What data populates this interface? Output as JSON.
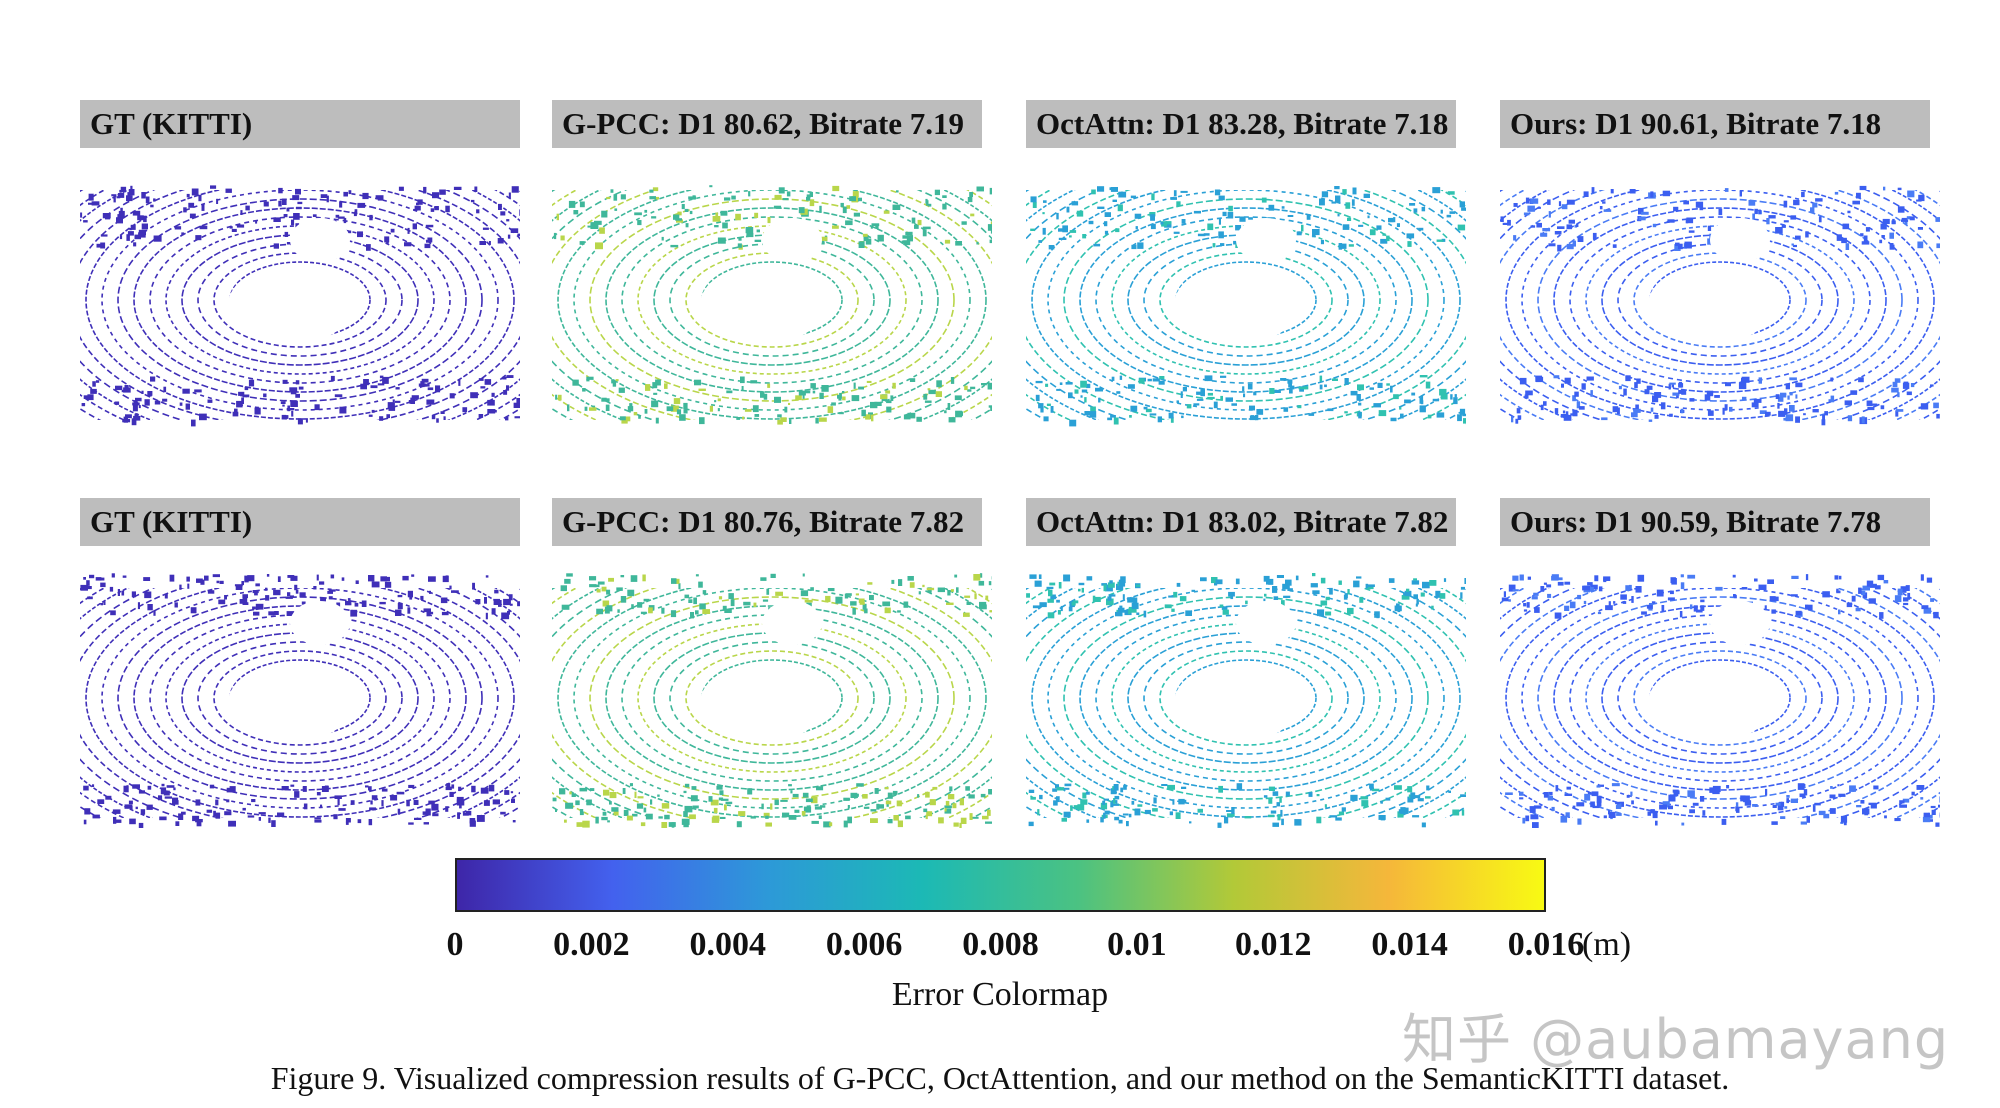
{
  "rows": [
    {
      "panels": [
        {
          "label": "GT (KITTI)",
          "color": "#3f2fb8"
        },
        {
          "label": "G-PCC: D1 80.62, Bitrate 7.19",
          "color": "#3fb79a",
          "accent": "#b9d64a"
        },
        {
          "label": "OctAttn: D1 83.28, Bitrate 7.18",
          "color": "#2aa0d6",
          "accent": "#30c2b0"
        },
        {
          "label": "Ours: D1 90.61, Bitrate 7.18",
          "color": "#3b5ef0",
          "accent": "#4a7cf5"
        }
      ]
    },
    {
      "panels": [
        {
          "label": "GT (KITTI)",
          "color": "#3f2fb8"
        },
        {
          "label": "G-PCC: D1 80.76, Bitrate 7.82",
          "color": "#3fb79a",
          "accent": "#b9d64a"
        },
        {
          "label": "OctAttn: D1 83.02, Bitrate 7.82",
          "color": "#2aa0d6",
          "accent": "#30c2b0"
        },
        {
          "label": "Ours: D1 90.59, Bitrate 7.78",
          "color": "#3b5ef0",
          "accent": "#4a7cf5"
        }
      ]
    }
  ],
  "colorbar": {
    "ticks": [
      "0",
      "0.002",
      "0.004",
      "0.006",
      "0.008",
      "0.01",
      "0.012",
      "0.014",
      "0.016"
    ],
    "unit": "(m)",
    "title": "Error Colormap",
    "colors": [
      "#3e26a8",
      "#4361ee",
      "#2d99d8",
      "#1cb9b5",
      "#4bc282",
      "#b2c938",
      "#f5b73a",
      "#f8fa13"
    ]
  },
  "caption": "Figure 9. Visualized compression results of G-PCC, OctAttention, and our method on the SemanticKITTI dataset.",
  "watermark": "知乎 @aubamayang"
}
